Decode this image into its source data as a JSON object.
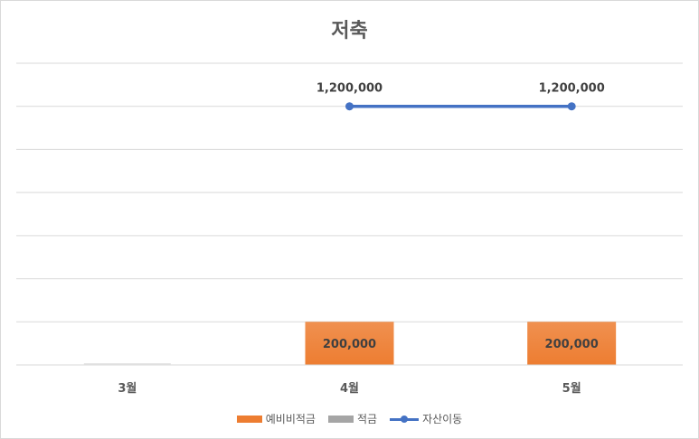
{
  "chart_data": {
    "type": "bar",
    "title": "저축",
    "categories": [
      "3월",
      "4월",
      "5월"
    ],
    "ylim": [
      0,
      1400000
    ],
    "grid": true,
    "legend_position": "bottom",
    "series": [
      {
        "name": "예비비적금",
        "kind": "bar",
        "color": "#ed7d31",
        "values": [
          0,
          200000,
          200000
        ],
        "labels": [
          "",
          "200,000",
          "200,000"
        ]
      },
      {
        "name": "적금",
        "kind": "bar",
        "color": "#a5a5a5",
        "values": [
          0,
          0,
          0
        ],
        "labels": [
          "",
          "",
          ""
        ]
      },
      {
        "name": "자산이동",
        "kind": "line",
        "color": "#4472c4",
        "values": [
          null,
          1200000,
          1200000
        ],
        "labels": [
          "",
          "1,200,000",
          "1,200,000"
        ]
      }
    ]
  }
}
